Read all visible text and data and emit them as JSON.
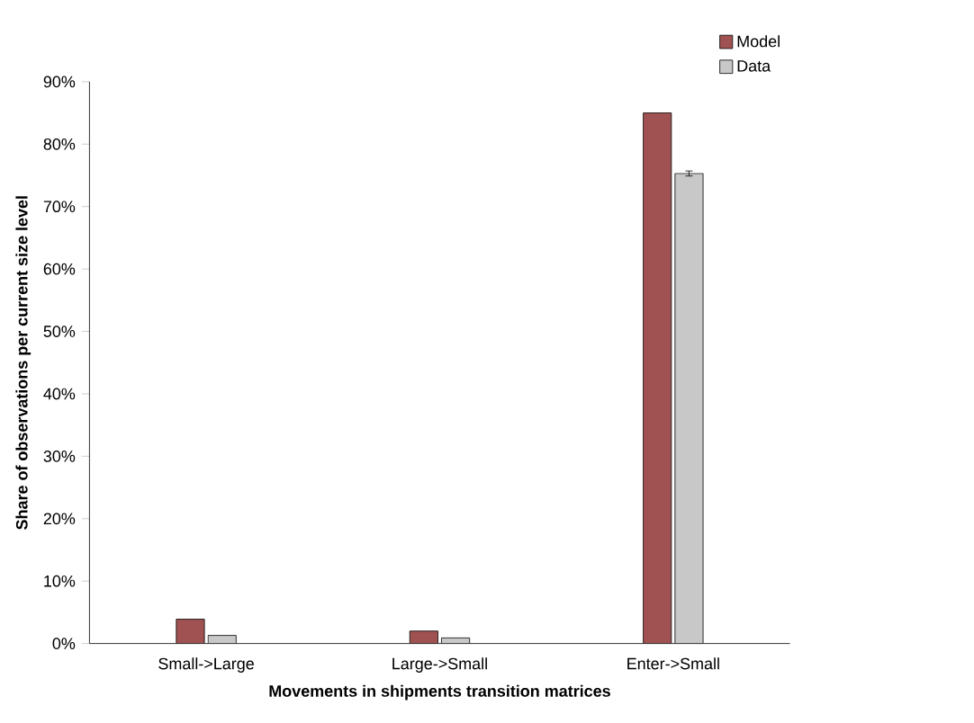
{
  "chart_data": {
    "type": "bar",
    "xlabel": "Movements in shipments transition matrices",
    "ylabel": "Share of observations per current size level",
    "categories": [
      "Small->Large",
      "Large->Small",
      "Enter->Small"
    ],
    "series": [
      {
        "name": "Model",
        "color": "#a05252",
        "values": [
          3.9,
          2.0,
          85.0
        ]
      },
      {
        "name": "Data",
        "color": "#c8c8c8",
        "values": [
          1.3,
          0.9,
          75.3
        ],
        "errors": [
          null,
          null,
          0.4
        ]
      }
    ],
    "ylim": [
      0,
      90
    ],
    "yticks": [
      {
        "value": 0,
        "label": "0%"
      },
      {
        "value": 10,
        "label": "10%"
      },
      {
        "value": 20,
        "label": "20%"
      },
      {
        "value": 30,
        "label": "30%"
      },
      {
        "value": 40,
        "label": "40%"
      },
      {
        "value": 50,
        "label": "50%"
      },
      {
        "value": 60,
        "label": "60%"
      },
      {
        "value": 70,
        "label": "70%"
      },
      {
        "value": 80,
        "label": "80%"
      },
      {
        "value": 90,
        "label": "90%"
      }
    ],
    "legend": "top right",
    "grid": false
  }
}
